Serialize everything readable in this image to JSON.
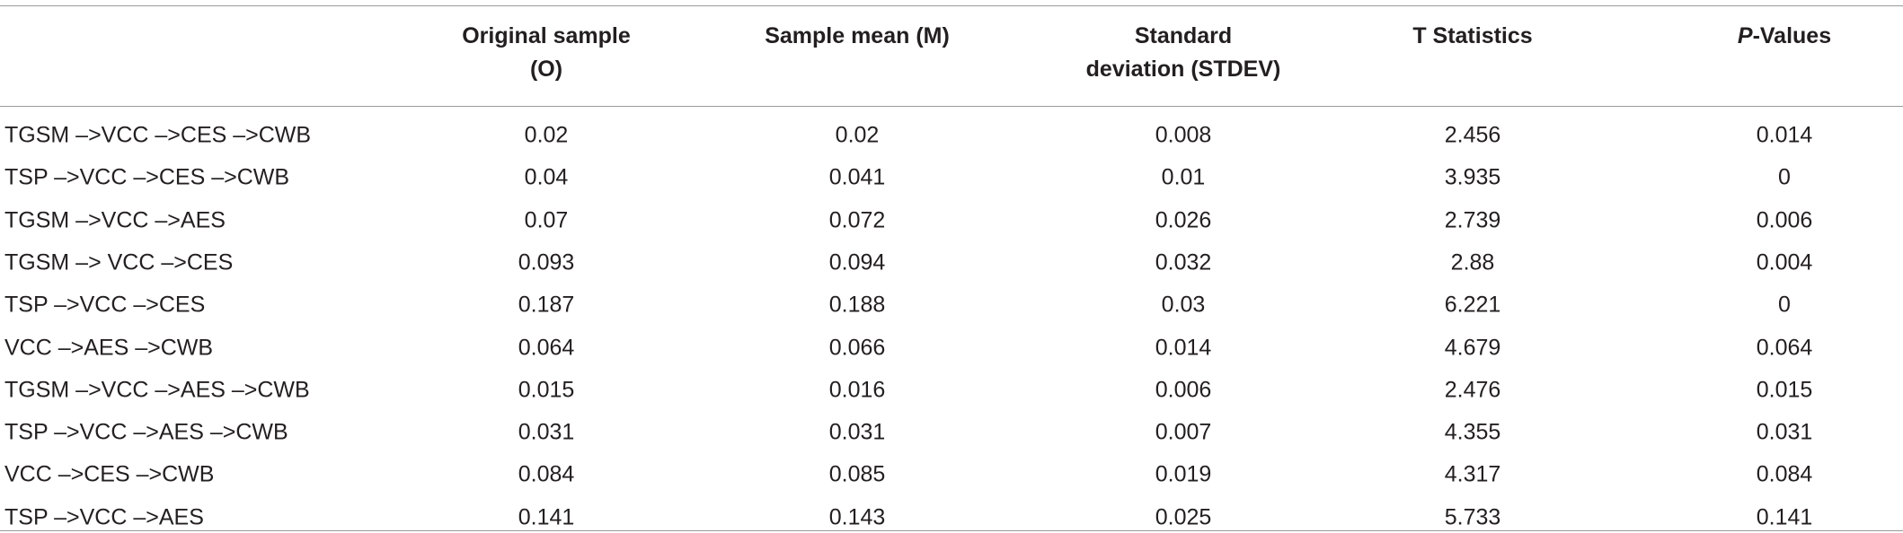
{
  "table": {
    "headers": [
      [
        "Original sample",
        "(O)"
      ],
      [
        "Sample mean (M)"
      ],
      [
        "Standard",
        "deviation (STDEV)"
      ],
      [
        "T Statistics"
      ]
    ],
    "p_header": {
      "italic": "P",
      "text": "-Values"
    },
    "rows": [
      [
        "TGSM –>VCC –>CES –>CWB",
        "0.02",
        "0.02",
        "0.008",
        "2.456",
        "0.014"
      ],
      [
        "TSP –>VCC –>CES –>CWB",
        "0.04",
        "0.041",
        "0.01",
        "3.935",
        "0"
      ],
      [
        "TGSM –>VCC –>AES",
        "0.07",
        "0.072",
        "0.026",
        "2.739",
        "0.006"
      ],
      [
        "TGSM –> VCC –>CES",
        "0.093",
        "0.094",
        "0.032",
        "2.88",
        "0.004"
      ],
      [
        "TSP –>VCC –>CES",
        "0.187",
        "0.188",
        "0.03",
        "6.221",
        "0"
      ],
      [
        "VCC –>AES –>CWB",
        "0.064",
        "0.066",
        "0.014",
        "4.679",
        "0.064"
      ],
      [
        "TGSM –>VCC –>AES –>CWB",
        "0.015",
        "0.016",
        "0.006",
        "2.476",
        "0.015"
      ],
      [
        "TSP –>VCC –>AES –>CWB",
        "0.031",
        "0.031",
        "0.007",
        "4.355",
        "0.031"
      ],
      [
        "VCC –>CES –>CWB",
        "0.084",
        "0.085",
        "0.019",
        "4.317",
        "0.084"
      ],
      [
        "TSP –>VCC –>AES",
        "0.141",
        "0.143",
        "0.025",
        "5.733",
        "0.141"
      ]
    ]
  }
}
